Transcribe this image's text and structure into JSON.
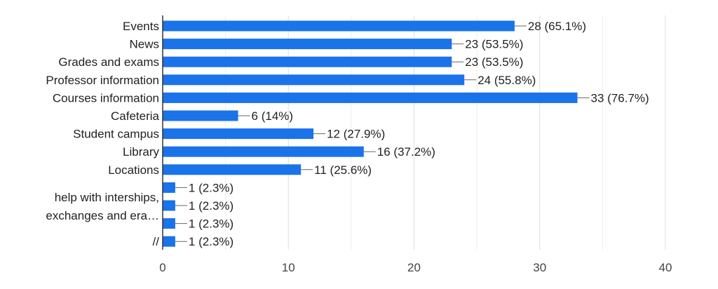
{
  "chart_data": {
    "type": "bar",
    "orientation": "horizontal",
    "title": "",
    "xlabel": "",
    "ylabel": "",
    "xlim": [
      0,
      40
    ],
    "x_ticks": [
      0,
      10,
      20,
      30,
      40
    ],
    "x_tick_labels": [
      "0",
      "10",
      "20",
      "30",
      "40"
    ],
    "grid": true,
    "bar_color": "#1a73e8",
    "categories": [
      "Events",
      "News",
      "Grades and exams",
      "Professor information",
      "Courses information",
      "Cafeteria",
      "Student campus",
      "Library",
      "Locations",
      "",
      "",
      "",
      "//"
    ],
    "values": [
      28,
      23,
      23,
      24,
      33,
      6,
      12,
      16,
      11,
      1,
      1,
      1,
      1
    ],
    "data_labels": [
      "28 (65.1%)",
      "23 (53.5%)",
      "23 (53.5%)",
      "24 (55.8%)",
      "33 (76.7%)",
      "6 (14%)",
      "12 (27.9%)",
      "16 (37.2%)",
      "11 (25.6%)",
      "1 (2.3%)",
      "1 (2.3%)",
      "1 (2.3%)",
      "1 (2.3%)"
    ],
    "group_label_lines": [
      "help with interships,",
      "exchanges and era…"
    ]
  }
}
